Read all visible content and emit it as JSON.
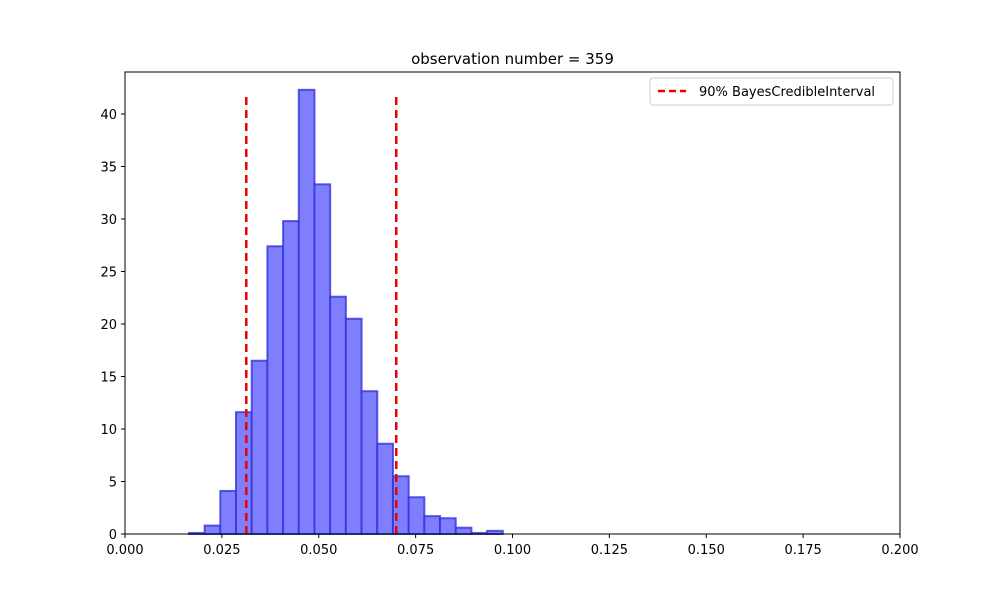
{
  "chart_data": {
    "type": "bar",
    "title": "observation number = 359",
    "xlabel": "",
    "ylabel": "",
    "xlim": [
      0.0,
      0.2
    ],
    "ylim": [
      0,
      44
    ],
    "x_ticks": [
      0.0,
      0.025,
      0.05,
      0.075,
      0.1,
      0.125,
      0.15,
      0.175,
      0.2
    ],
    "x_tick_labels": [
      "0.000",
      "0.025",
      "0.050",
      "0.075",
      "0.100",
      "0.125",
      "0.150",
      "0.175",
      "0.200"
    ],
    "y_ticks": [
      0,
      5,
      10,
      15,
      20,
      25,
      30,
      35,
      40
    ],
    "y_tick_labels": [
      "0",
      "5",
      "10",
      "15",
      "20",
      "25",
      "30",
      "35",
      "40"
    ],
    "bin_width": 0.00405,
    "bins": [
      {
        "x": 0.0165,
        "value": 0.1
      },
      {
        "x": 0.02055,
        "value": 0.8
      },
      {
        "x": 0.0246,
        "value": 4.1
      },
      {
        "x": 0.02865,
        "value": 11.6
      },
      {
        "x": 0.0327,
        "value": 16.5
      },
      {
        "x": 0.03675,
        "value": 27.4
      },
      {
        "x": 0.0408,
        "value": 29.8
      },
      {
        "x": 0.04485,
        "value": 42.3
      },
      {
        "x": 0.0489,
        "value": 33.3
      },
      {
        "x": 0.05295,
        "value": 22.6
      },
      {
        "x": 0.057,
        "value": 20.5
      },
      {
        "x": 0.06105,
        "value": 13.6
      },
      {
        "x": 0.0651,
        "value": 8.6
      },
      {
        "x": 0.06915,
        "value": 5.5
      },
      {
        "x": 0.0732,
        "value": 3.5
      },
      {
        "x": 0.07725,
        "value": 1.7
      },
      {
        "x": 0.0813,
        "value": 1.5
      },
      {
        "x": 0.08535,
        "value": 0.6
      },
      {
        "x": 0.0894,
        "value": 0.1
      },
      {
        "x": 0.09345,
        "value": 0.3
      }
    ],
    "bar_fill": "#7f7ffe",
    "bar_edge": "#3333dd",
    "credible_interval": {
      "label": "90% BayesCredibleInterval",
      "lower": 0.0313,
      "upper": 0.07,
      "line_top": 42.1,
      "color": "#ee0000",
      "style": "dashed"
    },
    "legend": {
      "placement": "top-right"
    },
    "grid": false
  }
}
